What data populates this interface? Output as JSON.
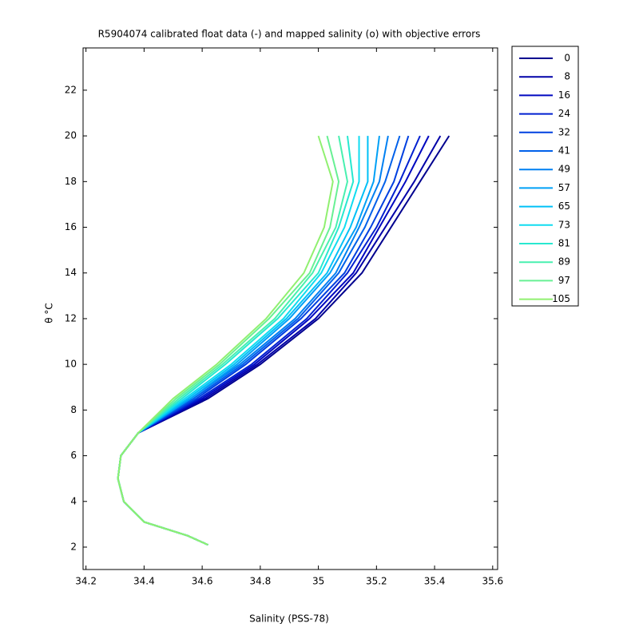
{
  "chart_data": {
    "type": "line",
    "title": "R5904074 calibrated float data (-) and mapped salinity (o) with objective errors",
    "x_label": "Salinity (PSS-78)",
    "y_label": "θ °C",
    "xlim": [
      34.19,
      35.617
    ],
    "ylim": [
      1.02,
      23.85
    ],
    "xticks": [
      34.2,
      34.4,
      34.6,
      34.8,
      35,
      35.2,
      35.4,
      35.6
    ],
    "yticks": [
      2,
      4,
      6,
      8,
      10,
      12,
      14,
      16,
      18,
      20,
      22
    ],
    "legend": "outside-right",
    "series": [
      {
        "name": "0",
        "color": "#00008f",
        "x": [
          34.62,
          34.55,
          34.4,
          34.33,
          34.31,
          34.32,
          34.38,
          34.62,
          34.8,
          35.0,
          35.15,
          35.25,
          35.35,
          35.45
        ],
        "y": [
          2.1,
          2.5,
          3.1,
          4,
          5,
          6,
          7,
          8.5,
          10,
          12,
          14,
          16,
          18,
          20
        ]
      },
      {
        "name": "8",
        "color": "#0000a8",
        "x": [
          34.62,
          34.55,
          34.4,
          34.33,
          34.31,
          34.32,
          34.38,
          34.61,
          34.79,
          34.99,
          35.13,
          35.23,
          35.33,
          35.42
        ],
        "y": [
          2.1,
          2.5,
          3.1,
          4,
          5,
          6,
          7,
          8.5,
          10,
          12,
          14,
          16,
          18,
          20
        ]
      },
      {
        "name": "16",
        "color": "#0008c0",
        "x": [
          34.62,
          34.55,
          34.4,
          34.33,
          34.31,
          34.32,
          34.38,
          34.6,
          34.78,
          34.97,
          35.12,
          35.21,
          35.3,
          35.38
        ],
        "y": [
          2.1,
          2.5,
          3.1,
          4,
          5,
          6,
          7,
          8.5,
          10,
          12,
          14,
          16,
          18,
          20
        ]
      },
      {
        "name": "24",
        "color": "#0020d0",
        "x": [
          34.62,
          34.55,
          34.4,
          34.33,
          34.31,
          34.32,
          34.38,
          34.59,
          34.77,
          34.96,
          35.1,
          35.2,
          35.28,
          35.35
        ],
        "y": [
          2.1,
          2.5,
          3.1,
          4,
          5,
          6,
          7,
          8.5,
          10,
          12,
          14,
          16,
          18,
          20
        ]
      },
      {
        "name": "32",
        "color": "#0040e0",
        "x": [
          34.62,
          34.55,
          34.4,
          34.33,
          34.31,
          34.32,
          34.38,
          34.58,
          34.75,
          34.94,
          35.09,
          35.18,
          35.26,
          35.31
        ],
        "y": [
          2.1,
          2.5,
          3.1,
          4,
          5,
          6,
          7,
          8.5,
          10,
          12,
          14,
          16,
          18,
          20
        ]
      },
      {
        "name": "41",
        "color": "#0060ea",
        "x": [
          34.62,
          34.55,
          34.4,
          34.33,
          34.31,
          34.32,
          34.38,
          34.57,
          34.74,
          34.93,
          35.07,
          35.16,
          35.23,
          35.28
        ],
        "y": [
          2.1,
          2.5,
          3.1,
          4,
          5,
          6,
          7,
          8.5,
          10,
          12,
          14,
          16,
          18,
          20
        ]
      },
      {
        "name": "49",
        "color": "#0080f2",
        "x": [
          34.62,
          34.55,
          34.4,
          34.33,
          34.31,
          34.32,
          34.38,
          34.56,
          34.73,
          34.92,
          35.06,
          35.14,
          35.21,
          35.24
        ],
        "y": [
          2.1,
          2.5,
          3.1,
          4,
          5,
          6,
          7,
          8.5,
          10,
          12,
          14,
          16,
          18,
          20
        ]
      },
      {
        "name": "57",
        "color": "#00a0f6",
        "x": [
          34.62,
          34.55,
          34.4,
          34.33,
          34.31,
          34.32,
          34.38,
          34.56,
          34.72,
          34.9,
          35.04,
          35.13,
          35.19,
          35.21
        ],
        "y": [
          2.1,
          2.5,
          3.1,
          4,
          5,
          6,
          7,
          8.5,
          10,
          12,
          14,
          16,
          18,
          20
        ]
      },
      {
        "name": "65",
        "color": "#00c0f6",
        "x": [
          34.62,
          34.55,
          34.4,
          34.33,
          34.31,
          34.32,
          34.38,
          34.55,
          34.71,
          34.89,
          35.03,
          35.11,
          35.17,
          35.17
        ],
        "y": [
          2.1,
          2.5,
          3.1,
          4,
          5,
          6,
          7,
          8.5,
          10,
          12,
          14,
          16,
          18,
          20
        ]
      },
      {
        "name": "73",
        "color": "#10dcf0",
        "x": [
          34.62,
          34.55,
          34.4,
          34.33,
          34.31,
          34.32,
          34.38,
          34.54,
          34.7,
          34.88,
          35.01,
          35.09,
          35.14,
          35.14
        ],
        "y": [
          2.1,
          2.5,
          3.1,
          4,
          5,
          6,
          7,
          8.5,
          10,
          12,
          14,
          16,
          18,
          20
        ]
      },
      {
        "name": "81",
        "color": "#28e8d0",
        "x": [
          34.62,
          34.55,
          34.4,
          34.33,
          34.31,
          34.32,
          34.38,
          34.53,
          34.68,
          34.86,
          35.0,
          35.07,
          35.12,
          35.1
        ],
        "y": [
          2.1,
          2.5,
          3.1,
          4,
          5,
          6,
          7,
          8.5,
          10,
          12,
          14,
          16,
          18,
          20
        ]
      },
      {
        "name": "89",
        "color": "#48f0b0",
        "x": [
          34.62,
          34.55,
          34.4,
          34.33,
          34.31,
          34.32,
          34.38,
          34.52,
          34.67,
          34.85,
          34.98,
          35.06,
          35.1,
          35.07
        ],
        "y": [
          2.1,
          2.5,
          3.1,
          4,
          5,
          6,
          7,
          8.5,
          10,
          12,
          14,
          16,
          18,
          20
        ]
      },
      {
        "name": "97",
        "color": "#68f094",
        "x": [
          34.62,
          34.55,
          34.4,
          34.33,
          34.31,
          34.32,
          34.38,
          34.51,
          34.66,
          34.83,
          34.97,
          35.04,
          35.07,
          35.03
        ],
        "y": [
          2.1,
          2.5,
          3.1,
          4,
          5,
          6,
          7,
          8.5,
          10,
          12,
          14,
          16,
          18,
          20
        ]
      },
      {
        "name": "105",
        "color": "#90f070",
        "x": [
          34.62,
          34.55,
          34.4,
          34.33,
          34.31,
          34.32,
          34.38,
          34.5,
          34.65,
          34.82,
          34.95,
          35.02,
          35.05,
          35.0
        ],
        "y": [
          2.1,
          2.5,
          3.1,
          4,
          5,
          6,
          7,
          8.5,
          10,
          12,
          14,
          16,
          18,
          20
        ]
      }
    ]
  }
}
